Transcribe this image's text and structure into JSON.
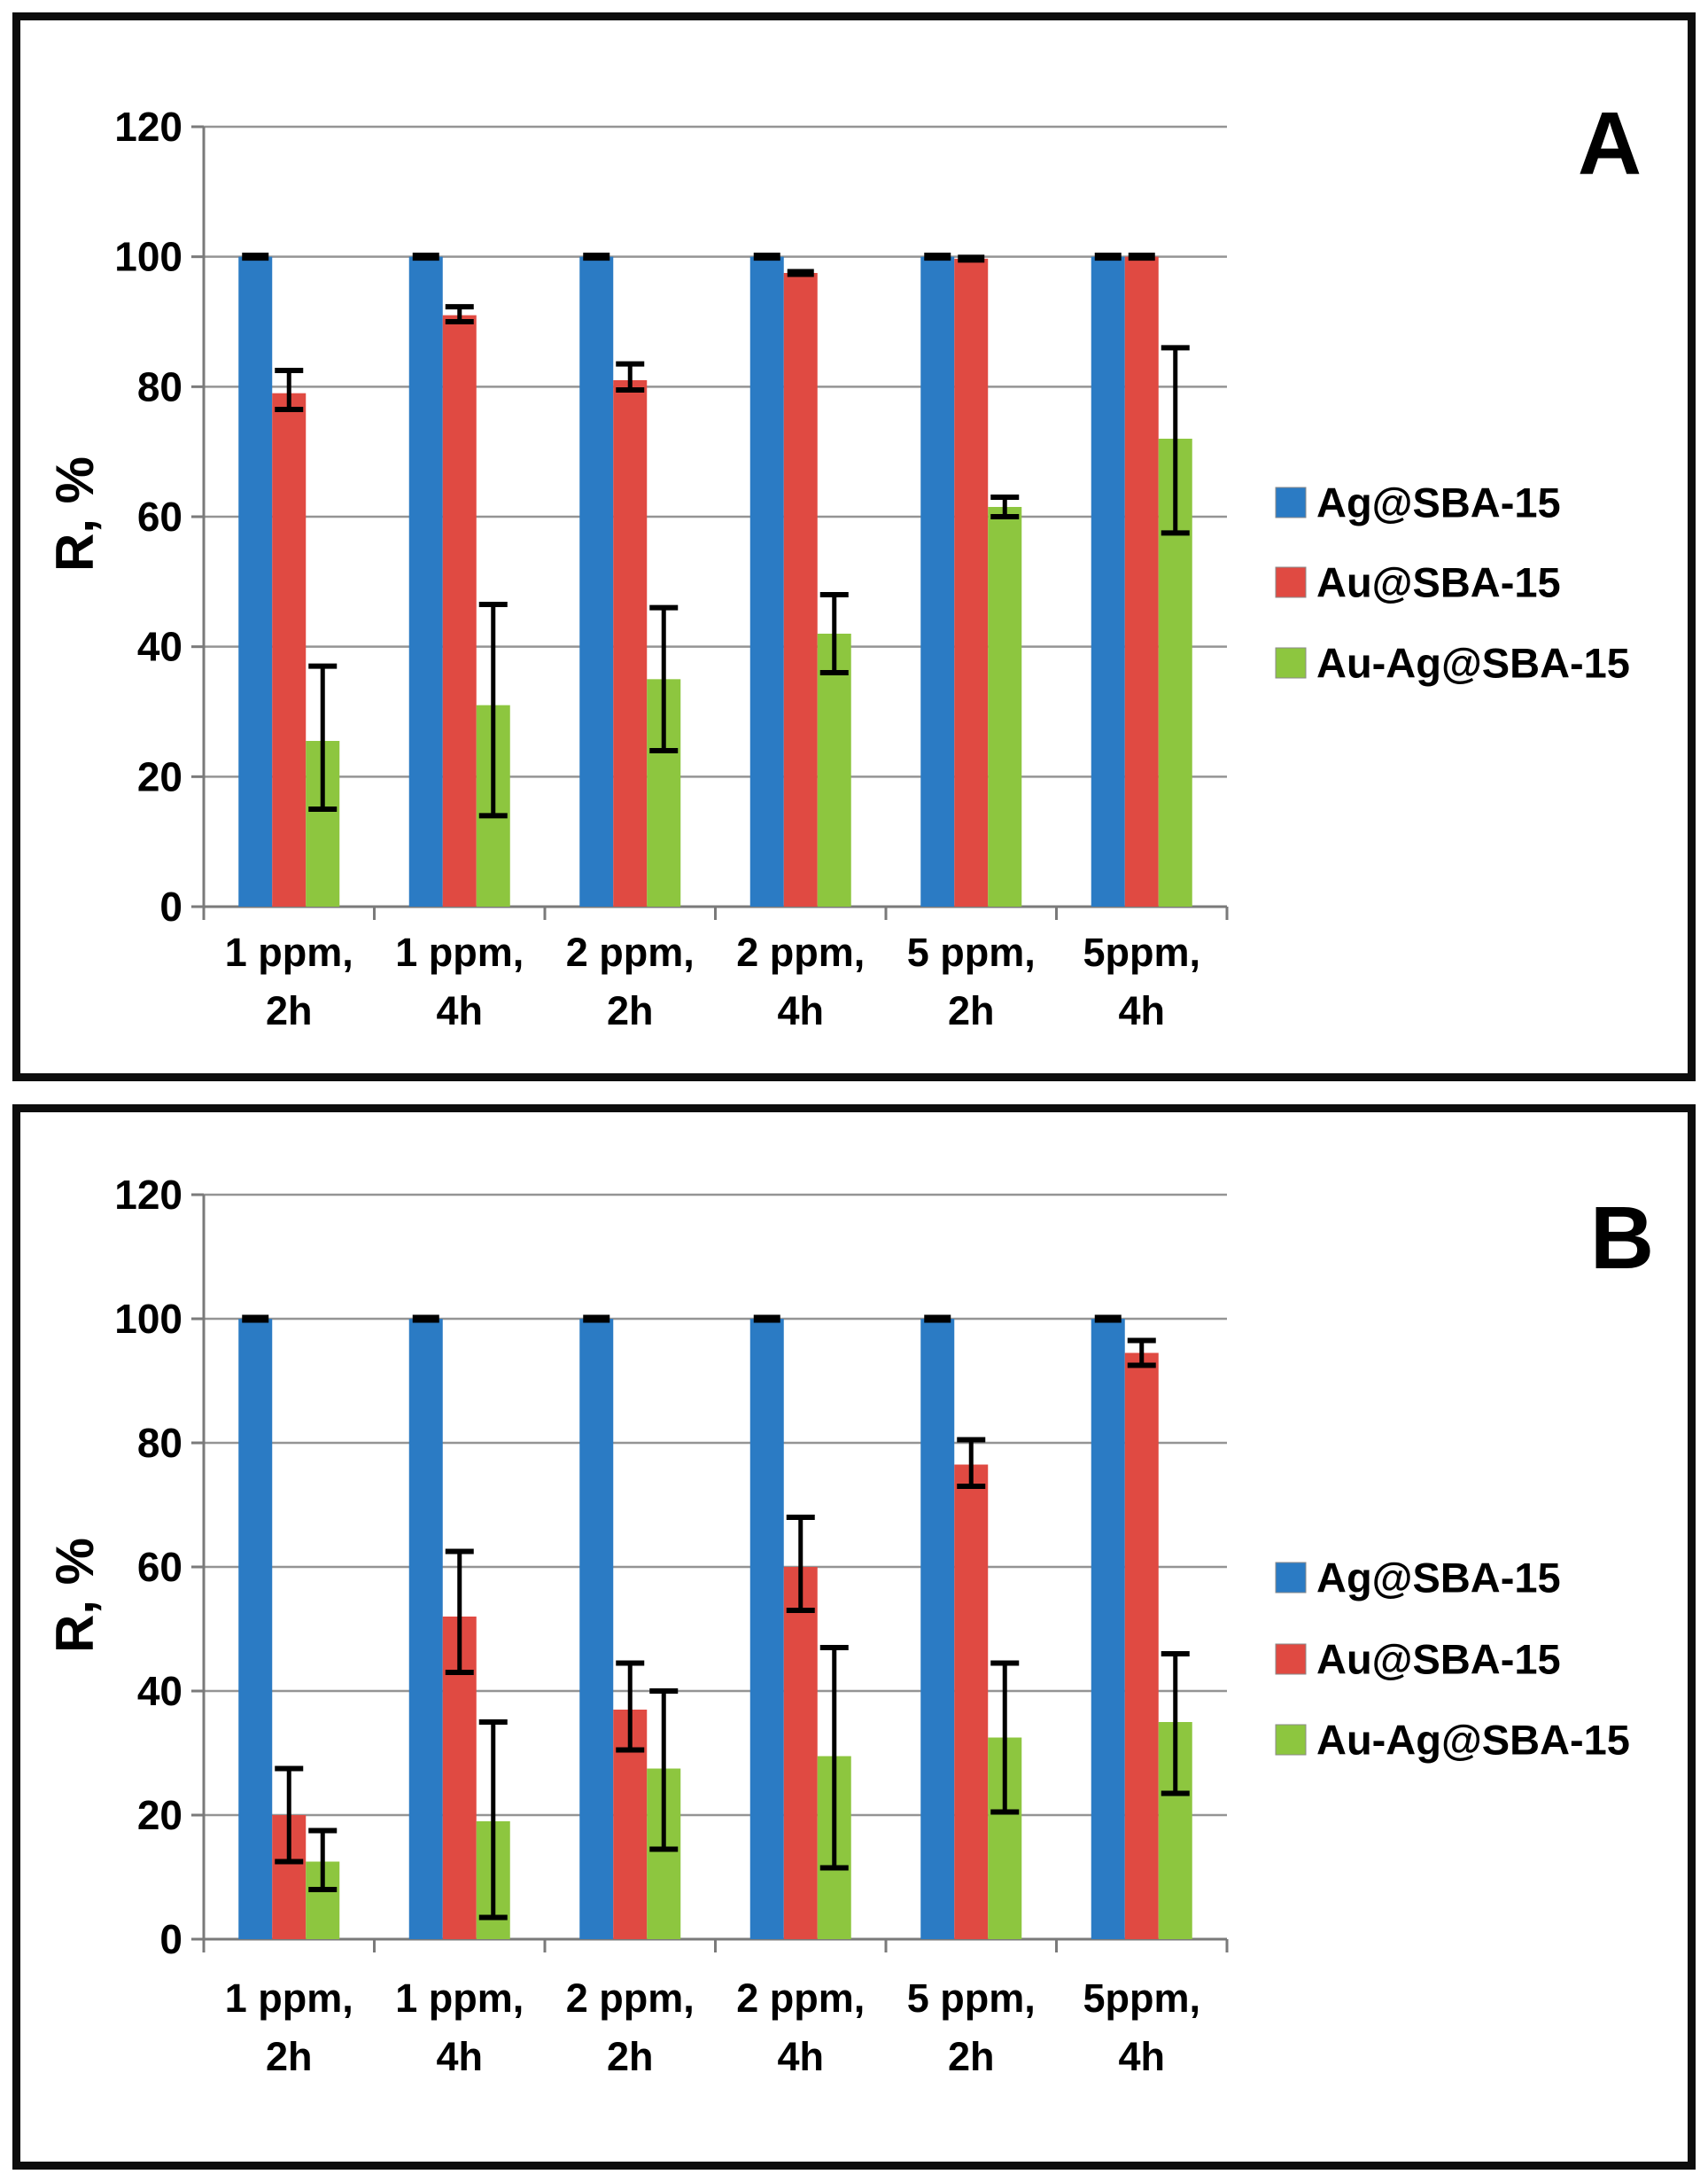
{
  "figure": {
    "background": "#ffffff",
    "frame_color": "#0d0d0d"
  },
  "style": {
    "grid_color": "#949494",
    "axis_color": "#7a7a7a",
    "error_color": "#000000",
    "text_color": "#000000"
  },
  "chart_data": [
    {
      "type": "bar",
      "panel_label": "A",
      "title": "",
      "ylabel": "R, %",
      "ylim": [
        0,
        120
      ],
      "y_ticks": [
        0,
        20,
        40,
        60,
        80,
        100,
        120
      ],
      "grid": true,
      "legend_position": "right",
      "categories": [
        "1 ppm, 2h",
        "1 ppm, 4h",
        "2 ppm, 2h",
        "2 ppm, 4h",
        "5 ppm, 2h",
        "5ppm, 4h"
      ],
      "series": [
        {
          "name": "Ag@SBA-15",
          "color": "#2B7BC4",
          "values": [
            100,
            100,
            100,
            100,
            100,
            100
          ],
          "error_low": [
            100,
            100,
            100,
            100,
            100,
            100
          ],
          "error_high": [
            100,
            100,
            100,
            100,
            100,
            100
          ]
        },
        {
          "name": "Au@SBA-15",
          "color": "#E04A42",
          "values": [
            79,
            91,
            81,
            97.5,
            99.7,
            100
          ],
          "error_low": [
            76.5,
            90,
            79.5,
            97.5,
            99.7,
            100
          ],
          "error_high": [
            82.5,
            92.3,
            83.5,
            97.5,
            99.7,
            100
          ]
        },
        {
          "name": "Au-Ag@SBA-15",
          "color": "#8DC63F",
          "values": [
            25.5,
            31,
            35,
            42,
            61.5,
            72
          ],
          "error_low": [
            15,
            14,
            24,
            36,
            60,
            57.5
          ],
          "error_high": [
            37,
            46.5,
            46,
            48,
            63,
            86
          ]
        }
      ]
    },
    {
      "type": "bar",
      "panel_label": "B",
      "title": "",
      "ylabel": "R, %",
      "ylim": [
        0,
        120
      ],
      "y_ticks": [
        0,
        20,
        40,
        60,
        80,
        100,
        120
      ],
      "grid": true,
      "legend_position": "right",
      "categories": [
        "1 ppm, 2h",
        "1 ppm, 4h",
        "2 ppm, 2h",
        "2 ppm, 4h",
        "5 ppm, 2h",
        "5ppm, 4h"
      ],
      "series": [
        {
          "name": "Ag@SBA-15",
          "color": "#2B7BC4",
          "values": [
            100,
            100,
            100,
            100,
            100,
            100
          ],
          "error_low": [
            100,
            100,
            100,
            100,
            100,
            100
          ],
          "error_high": [
            100,
            100,
            100,
            100,
            100,
            100
          ]
        },
        {
          "name": "Au@SBA-15",
          "color": "#E04A42",
          "values": [
            20,
            52,
            37,
            60,
            76.5,
            94.5
          ],
          "error_low": [
            12.5,
            43,
            30.5,
            53,
            73,
            92.5
          ],
          "error_high": [
            27.5,
            62.5,
            44.5,
            68,
            80.5,
            96.5
          ]
        },
        {
          "name": "Au-Ag@SBA-15",
          "color": "#8DC63F",
          "values": [
            12.5,
            19,
            27.5,
            29.5,
            32.5,
            35
          ],
          "error_low": [
            8,
            3.5,
            14.5,
            11.5,
            20.5,
            23.5
          ],
          "error_high": [
            17.5,
            35,
            40,
            47,
            44.5,
            46
          ]
        }
      ]
    }
  ]
}
